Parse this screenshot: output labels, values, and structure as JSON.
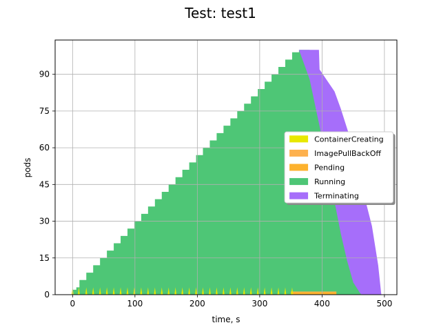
{
  "chart_data": {
    "type": "area",
    "title": "Test: test1",
    "xlabel": "time, s",
    "ylabel": "pods",
    "xlim": [
      -28,
      520
    ],
    "ylim": [
      0,
      104
    ],
    "xticks": [
      0,
      100,
      200,
      300,
      400,
      500
    ],
    "yticks": [
      0,
      15,
      30,
      45,
      60,
      75,
      90
    ],
    "grid": true,
    "legend_position": "right",
    "legend_box_top_pods": 66.5,
    "legend_box_bottom_pods": 37.5,
    "legend_box_left_s": 340,
    "legend_box_right_s": 514,
    "series": [
      {
        "name": "ContainerCreating",
        "color": "#e8e800",
        "spikes_x": [
          0,
          10,
          22,
          33,
          44,
          55,
          66,
          77,
          88,
          99,
          110,
          121,
          132,
          143,
          154,
          165,
          176,
          187,
          198,
          209,
          220,
          231,
          242,
          253,
          264,
          275,
          286,
          297,
          308,
          319,
          330,
          341,
          352
        ],
        "spike_height": 3
      },
      {
        "name": "ImagePullBackOff",
        "color": "#fdb14e",
        "x": [
          350,
          423
        ],
        "y": [
          1,
          1
        ]
      },
      {
        "name": "Pending",
        "color": "#fdb22e",
        "x": [
          350,
          423
        ],
        "y": [
          1,
          1
        ]
      },
      {
        "name": "Running",
        "color": "#4ec676",
        "steps_x": [
          0,
          6,
          11,
          22,
          33,
          44,
          55,
          66,
          77,
          88,
          99,
          110,
          121,
          132,
          143,
          154,
          165,
          176,
          187,
          198,
          209,
          220,
          231,
          242,
          253,
          264,
          275,
          286,
          297,
          308,
          319,
          330,
          341,
          352,
          363,
          380,
          390,
          400,
          410,
          420,
          430,
          440,
          450,
          460,
          463
        ],
        "steps_y": [
          2,
          3,
          6,
          9,
          12,
          15,
          18,
          21,
          24,
          27,
          30,
          33,
          36,
          39,
          42,
          45,
          48,
          51,
          54,
          57,
          60,
          63,
          66,
          69,
          72,
          75,
          78,
          81,
          84,
          87,
          90,
          93,
          96,
          99,
          100,
          88,
          76,
          64,
          51,
          38,
          25,
          14,
          5,
          1,
          0
        ]
      },
      {
        "name": "Terminating",
        "color": "#a66efa",
        "top_x": [
          363,
          395,
          396,
          420,
          430,
          440,
          450,
          460,
          470,
          480,
          490,
          495
        ],
        "top_y": [
          100,
          100,
          92,
          83,
          76,
          68,
          60,
          50,
          38,
          28,
          12,
          0
        ]
      }
    ]
  }
}
